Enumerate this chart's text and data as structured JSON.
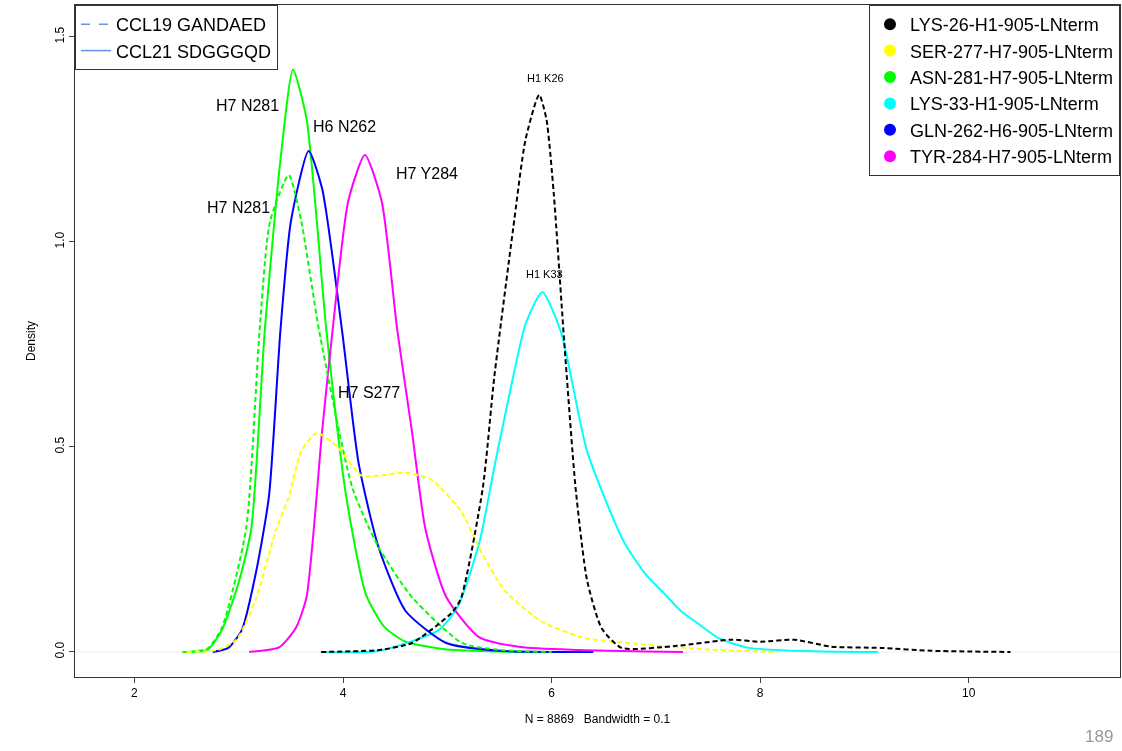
{
  "chart_data": {
    "type": "line",
    "xlabel": "N = 8869   Bandwidth = 0.1",
    "ylabel": "Density",
    "xlim": [
      1.43,
      11.45
    ],
    "ylim": [
      -0.061,
      1.578
    ],
    "xticks": [
      2,
      4,
      6,
      8,
      10
    ],
    "yticks": [
      {
        "value": 0,
        "label": "0.0"
      },
      {
        "value": 0.5,
        "label": "0.5"
      },
      {
        "value": 1.0,
        "label": "1.0"
      },
      {
        "value": 1.5,
        "label": "1.5"
      }
    ],
    "grid": false,
    "legend": "top right",
    "ref_lines": [
      {
        "axis": "y",
        "value": 0,
        "color": "#eeeeee"
      }
    ],
    "series": [
      {
        "name": "LYS-26-H1-905-LNterm",
        "color": "#000000",
        "line_style": "dashed",
        "x": [
          3.79,
          4.35,
          4.66,
          5.04,
          5.13,
          5.34,
          5.45,
          5.63,
          5.75,
          5.88,
          5.95,
          6.02,
          6.12,
          6.23,
          6.34,
          6.48,
          6.67,
          7.2,
          7.72,
          8.0,
          8.33,
          8.68,
          9.16,
          9.64,
          10.4
        ],
        "values": [
          0,
          0.005,
          0.022,
          0.095,
          0.13,
          0.4,
          0.67,
          1.03,
          1.25,
          1.359,
          1.3,
          1.12,
          0.76,
          0.4,
          0.175,
          0.058,
          0.01,
          0.015,
          0.03,
          0.025,
          0.03,
          0.013,
          0.01,
          0.003,
          0
        ]
      },
      {
        "name": "SER-277-H7-905-LNterm",
        "color": "#ffff00",
        "line_style": "dashed",
        "x": [
          2.5,
          2.8,
          2.98,
          3.17,
          3.36,
          3.48,
          3.6,
          3.75,
          3.95,
          4.18,
          4.6,
          4.85,
          5.14,
          5.3,
          5.55,
          5.9,
          6.3,
          6.8,
          7.5,
          8.17
        ],
        "values": [
          0,
          0.005,
          0.03,
          0.134,
          0.3,
          0.378,
          0.49,
          0.534,
          0.5,
          0.43,
          0.437,
          0.42,
          0.34,
          0.256,
          0.15,
          0.075,
          0.035,
          0.02,
          0.006,
          0
        ]
      },
      {
        "color": "#00ff00",
        "line_style": "dashed",
        "x": [
          2.46,
          2.7,
          2.84,
          3.07,
          3.2,
          3.3,
          3.48,
          3.6,
          3.77,
          4.09,
          4.34,
          4.66,
          5.14,
          5.5,
          6.0
        ],
        "values": [
          0,
          0.008,
          0.06,
          0.3,
          0.785,
          1.05,
          1.163,
          1.05,
          0.785,
          0.4,
          0.256,
          0.134,
          0.022,
          0.005,
          0
        ]
      },
      {
        "name": "ASN-281-H7-905-LNterm",
        "color": "#00ff00",
        "line_style": "solid",
        "x": [
          2.5,
          2.7,
          2.84,
          3.0,
          3.12,
          3.25,
          3.4,
          3.52,
          3.65,
          3.84,
          4.03,
          4.22,
          4.4,
          4.6,
          5.0,
          5.5,
          6.2
        ],
        "values": [
          0,
          0.005,
          0.054,
          0.17,
          0.3,
          0.785,
          1.2,
          1.42,
          1.3,
          0.785,
          0.38,
          0.14,
          0.06,
          0.025,
          0.006,
          0.001,
          0
        ]
      },
      {
        "name": "LYS-33-H1-905-LNterm",
        "color": "#00ffff",
        "line_style": "solid",
        "x": [
          3.79,
          4.35,
          4.92,
          5.1,
          5.31,
          5.45,
          5.63,
          5.75,
          5.91,
          6.09,
          6.34,
          6.69,
          6.9,
          7.09,
          7.24,
          7.4,
          7.6,
          7.89,
          8.5,
          9.13
        ],
        "values": [
          0,
          0.003,
          0.054,
          0.11,
          0.27,
          0.45,
          0.67,
          0.8,
          0.878,
          0.78,
          0.49,
          0.27,
          0.19,
          0.14,
          0.1,
          0.07,
          0.034,
          0.01,
          0.002,
          0
        ]
      },
      {
        "name": "GLN-262-H6-905-LNterm",
        "color": "#0000ff",
        "line_style": "solid",
        "x": [
          2.75,
          2.9,
          3.03,
          3.17,
          3.29,
          3.4,
          3.5,
          3.67,
          3.8,
          3.99,
          4.15,
          4.34,
          4.6,
          4.99,
          5.5,
          6.4
        ],
        "values": [
          0,
          0.01,
          0.054,
          0.2,
          0.38,
          0.785,
          1.05,
          1.222,
          1.13,
          0.785,
          0.46,
          0.256,
          0.1,
          0.022,
          0.003,
          0
        ]
      },
      {
        "name": "TYR-284-H7-905-LNterm",
        "color": "#ff00ff",
        "line_style": "solid",
        "x": [
          3.1,
          3.39,
          3.55,
          3.65,
          3.8,
          3.9,
          4.05,
          4.21,
          4.37,
          4.52,
          4.66,
          4.79,
          4.99,
          5.3,
          5.7,
          6.26,
          7.26
        ],
        "values": [
          0,
          0.012,
          0.06,
          0.134,
          0.54,
          0.785,
          1.1,
          1.212,
          1.1,
          0.785,
          0.54,
          0.3,
          0.134,
          0.037,
          0.012,
          0.005,
          0
        ]
      }
    ],
    "annotations": [
      "CCL19 GANDAED",
      "CCL21 SDGGGQD",
      {
        "text": "H7 N281",
        "x": 3.52,
        "y": 1.42
      },
      {
        "text": "H6 N262",
        "x": 3.67,
        "y": 1.222
      },
      {
        "text": "H7 Y284",
        "x": 4.21,
        "y": 1.212
      },
      {
        "text": "H7 N281",
        "x": 3.48,
        "y": 1.163
      },
      {
        "text": "H7 S277",
        "x": 3.75,
        "y": 0.534
      },
      {
        "text": "H1 K26",
        "x": 5.88,
        "y": 1.359
      },
      {
        "text": "H1 K33",
        "x": 5.91,
        "y": 0.878
      },
      "189"
    ]
  }
}
